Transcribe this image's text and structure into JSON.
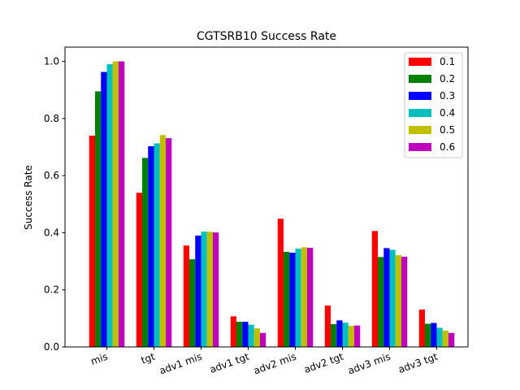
{
  "chart_data": {
    "type": "bar",
    "title": "CGTSRB10 Success Rate",
    "xlabel": "",
    "ylabel": "Success Rate",
    "ylim": [
      0,
      1.05
    ],
    "yticks": [
      "0.0",
      "0.2",
      "0.4",
      "0.6",
      "0.8",
      "1.0"
    ],
    "categories": [
      "mis",
      "tgt",
      "adv1 mis",
      "adv1 tgt",
      "adv2 mis",
      "adv2 tgt",
      "adv3 mis",
      "adv3 tgt"
    ],
    "series": [
      {
        "name": "0.1",
        "color": "#ff0000",
        "values": [
          0.74,
          0.54,
          0.355,
          0.107,
          0.449,
          0.145,
          0.406,
          0.131
        ]
      },
      {
        "name": "0.2",
        "color": "#008000",
        "values": [
          0.895,
          0.662,
          0.307,
          0.088,
          0.333,
          0.08,
          0.315,
          0.081
        ]
      },
      {
        "name": "0.3",
        "color": "#0000ff",
        "values": [
          0.963,
          0.703,
          0.39,
          0.088,
          0.33,
          0.093,
          0.346,
          0.084
        ]
      },
      {
        "name": "0.4",
        "color": "#00bfbf",
        "values": [
          0.99,
          0.713,
          0.404,
          0.078,
          0.344,
          0.085,
          0.34,
          0.067
        ]
      },
      {
        "name": "0.5",
        "color": "#bfbf00",
        "values": [
          1.0,
          0.742,
          0.403,
          0.065,
          0.349,
          0.074,
          0.321,
          0.057
        ]
      },
      {
        "name": "0.6",
        "color": "#bf00bf",
        "values": [
          1.0,
          0.731,
          0.401,
          0.049,
          0.347,
          0.075,
          0.316,
          0.049
        ]
      }
    ],
    "legend": "top-right",
    "grid": false,
    "xtick_rotation": -20
  }
}
